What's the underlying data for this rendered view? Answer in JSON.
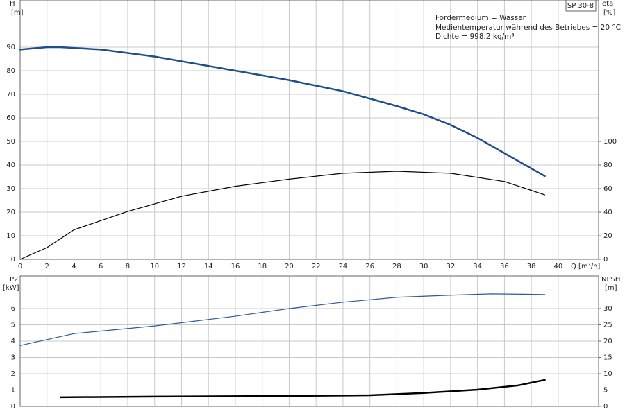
{
  "title": "SP 30-8",
  "annotations": [
    "Fördermedium = Wasser",
    "Medientemperatur während des Betriebes = 20 °C",
    "Dichte = 998.2 kg/m³"
  ],
  "chart_data": [
    {
      "type": "line",
      "x_label": "Q [m³/h]",
      "y_label": "H",
      "y_unit": "[m]",
      "y2_label": "eta",
      "y2_unit": "[%]",
      "xlim": [
        0,
        43
      ],
      "xticks": [
        0,
        2,
        4,
        6,
        8,
        10,
        12,
        14,
        16,
        18,
        20,
        22,
        24,
        26,
        28,
        30,
        32,
        34,
        36,
        38,
        40
      ],
      "show_xtick_labels": true,
      "ylim": [
        0,
        110
      ],
      "yticks": [
        0,
        10,
        20,
        30,
        40,
        50,
        60,
        70,
        80,
        90
      ],
      "y2lim": [
        0,
        220
      ],
      "y2ticks": [
        0,
        20,
        40,
        60,
        80,
        100
      ],
      "grid": true,
      "series": [
        {
          "color": "#1f4e8c",
          "line_width": 2.5,
          "x": [
            0,
            2,
            3,
            6,
            10,
            16,
            20,
            24,
            28,
            30,
            32,
            34,
            36,
            39
          ],
          "values": [
            89,
            90,
            90,
            89,
            86,
            80,
            76,
            71.3,
            65,
            61.5,
            57,
            51.5,
            45,
            35.3
          ]
        },
        {
          "color": "#000000",
          "line_width": 1.2,
          "axis": "y2",
          "x": [
            0,
            2,
            4,
            8,
            12,
            16,
            20,
            24,
            28,
            32,
            36,
            39
          ],
          "values": [
            0,
            10,
            25,
            40.6,
            53.5,
            62,
            68,
            73,
            74.7,
            73,
            66,
            54.7
          ]
        }
      ]
    },
    {
      "type": "line",
      "y_label": "P2",
      "y_unit": "[kW]",
      "y2_label": "NPSH",
      "y2_unit": "[m]",
      "xlim": [
        0,
        43
      ],
      "xticks": [
        0,
        2,
        4,
        6,
        8,
        10,
        12,
        14,
        16,
        18,
        20,
        22,
        24,
        26,
        28,
        30,
        32,
        34,
        36,
        38,
        40
      ],
      "show_xtick_labels": false,
      "ylim": [
        0,
        8
      ],
      "yticks": [
        0,
        1,
        2,
        3,
        4,
        5,
        6
      ],
      "y2lim": [
        0,
        40
      ],
      "y2ticks": [
        0,
        5,
        10,
        15,
        20,
        25,
        30
      ],
      "grid": true,
      "series": [
        {
          "color": "#2b5b9c",
          "line_width": 1.2,
          "x": [
            0,
            4,
            10,
            16,
            20,
            24,
            28,
            32,
            35,
            39
          ],
          "values": [
            3.73,
            4.46,
            4.93,
            5.53,
            6.0,
            6.39,
            6.69,
            6.82,
            6.9,
            6.86
          ]
        },
        {
          "color": "#000000",
          "line_width": 2.5,
          "axis": "y2",
          "x": [
            3,
            10,
            20,
            26,
            30,
            34,
            37,
            39
          ],
          "values": [
            2.8,
            3.0,
            3.2,
            3.4,
            4.1,
            5.1,
            6.4,
            8.1
          ]
        }
      ]
    }
  ]
}
